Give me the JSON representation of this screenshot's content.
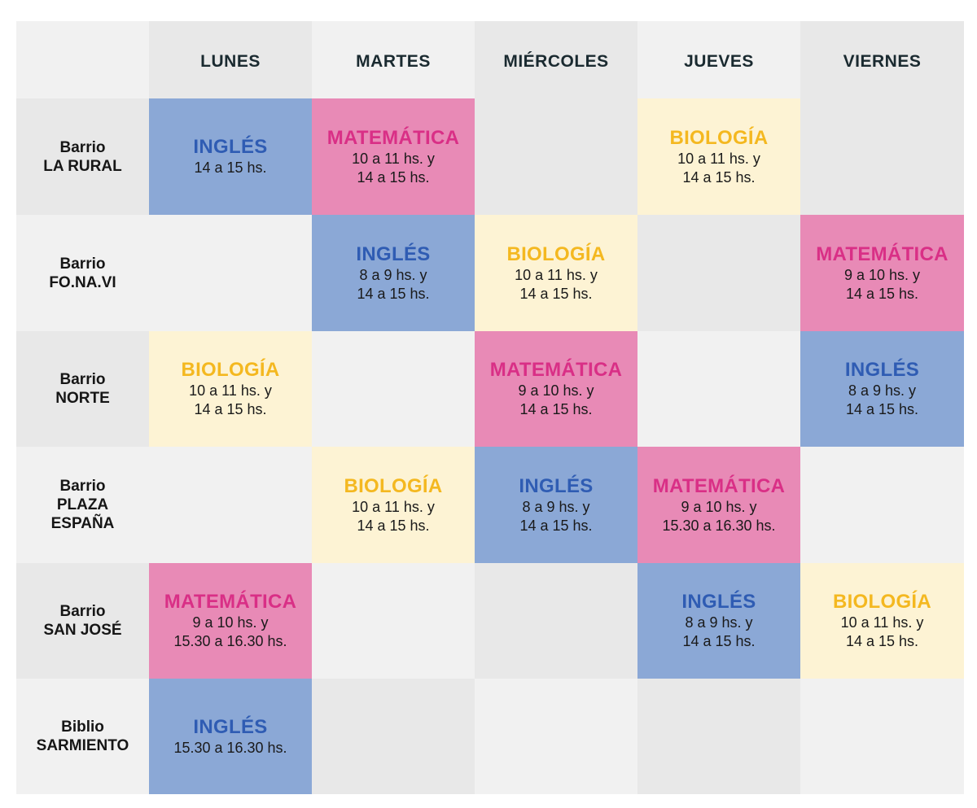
{
  "days": [
    "LUNES",
    "MARTES",
    "MIÉRCOLES",
    "JUEVES",
    "VIERNES"
  ],
  "rows": [
    {
      "label": [
        "Barrio",
        "LA RURAL"
      ],
      "cells": [
        {
          "subject": "INGLÉS",
          "time": [
            "14 a 15 hs."
          ]
        },
        {
          "subject": "MATEMÁTICA",
          "time": [
            "10 a 11 hs. y",
            "14 a 15 hs."
          ]
        },
        null,
        {
          "subject": "BIOLOGÍA",
          "time": [
            "10 a 11 hs. y",
            "14 a 15 hs."
          ]
        },
        null
      ]
    },
    {
      "label": [
        "Barrio",
        "FO.NA.VI"
      ],
      "cells": [
        null,
        {
          "subject": "INGLÉS",
          "time": [
            "8 a 9 hs. y",
            "14 a 15 hs."
          ]
        },
        {
          "subject": "BIOLOGÍA",
          "time": [
            "10 a 11 hs. y",
            "14 a 15 hs."
          ]
        },
        null,
        {
          "subject": "MATEMÁTICA",
          "time": [
            "9 a 10 hs. y",
            "14 a 15 hs."
          ]
        }
      ]
    },
    {
      "label": [
        "Barrio",
        "NORTE"
      ],
      "cells": [
        {
          "subject": "BIOLOGÍA",
          "time": [
            "10 a 11 hs. y",
            "14 a 15 hs."
          ]
        },
        null,
        {
          "subject": "MATEMÁTICA",
          "time": [
            "9 a 10 hs. y",
            "14 a 15 hs."
          ]
        },
        null,
        {
          "subject": "INGLÉS",
          "time": [
            "8 a 9 hs. y",
            "14 a 15 hs."
          ]
        }
      ]
    },
    {
      "label": [
        "Barrio",
        "PLAZA",
        "ESPAÑA"
      ],
      "cells": [
        null,
        {
          "subject": "BIOLOGÍA",
          "time": [
            "10 a 11 hs. y",
            "14 a 15 hs."
          ]
        },
        {
          "subject": "INGLÉS",
          "time": [
            "8 a 9 hs. y",
            "14 a 15 hs."
          ]
        },
        {
          "subject": "MATEMÁTICA",
          "time": [
            "9 a 10 hs. y",
            "15.30 a 16.30 hs."
          ]
        },
        null
      ]
    },
    {
      "label": [
        "Barrio",
        "SAN JOSÉ"
      ],
      "cells": [
        {
          "subject": "MATEMÁTICA",
          "time": [
            "9 a 10 hs. y",
            "15.30 a 16.30 hs."
          ]
        },
        null,
        null,
        {
          "subject": "INGLÉS",
          "time": [
            "8 a 9 hs. y",
            "14 a 15 hs."
          ]
        },
        {
          "subject": "BIOLOGÍA",
          "time": [
            "10 a 11 hs. y",
            "14 a 15 hs."
          ]
        }
      ]
    },
    {
      "label": [
        "Biblio",
        "SARMIENTO"
      ],
      "cells": [
        {
          "subject": "INGLÉS",
          "time": [
            "15.30 a 16.30 hs."
          ]
        },
        null,
        null,
        null,
        null
      ]
    }
  ],
  "colors": {
    "ingles_bg": "#8ba8d6",
    "ingles_text": "#2f5cb3",
    "matematica_bg": "#e88ab6",
    "matematica_text": "#d92f86",
    "biologia_bg": "#fdf3d4",
    "biologia_text": "#f4b820",
    "header_dark": "#e8e8e8",
    "header_light": "#f1f1f1"
  }
}
